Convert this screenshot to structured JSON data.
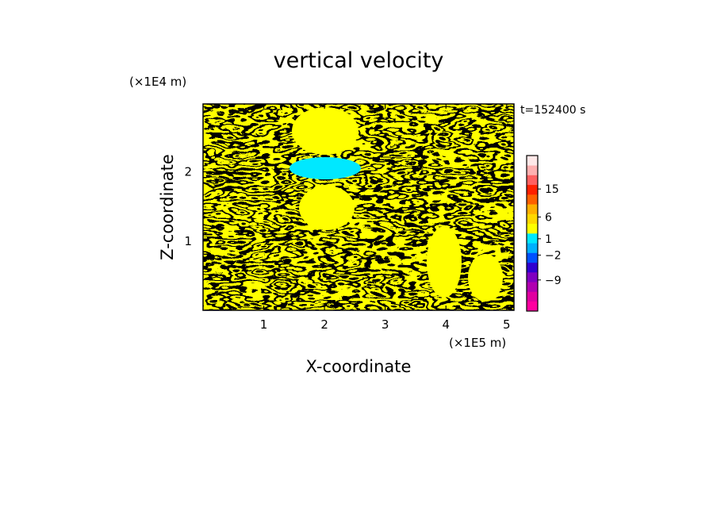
{
  "chart_data": {
    "type": "heatmap",
    "title": "vertical velocity",
    "xlabel": "X-coordinate",
    "ylabel": "Z-coordinate",
    "x_unit": "(×1E5 m)",
    "y_unit": "(×1E4 m)",
    "time_label": "t=152400 s",
    "xlim": [
      0,
      5.12
    ],
    "ylim": [
      0,
      2.98
    ],
    "x_ticks": [
      {
        "value": 1,
        "label": "1"
      },
      {
        "value": 2,
        "label": "2"
      },
      {
        "value": 3,
        "label": "3"
      },
      {
        "value": 4,
        "label": "4"
      },
      {
        "value": 5,
        "label": "5"
      }
    ],
    "y_ticks": [
      {
        "value": 1,
        "label": "1"
      },
      {
        "value": 2,
        "label": "2"
      }
    ],
    "field_colors": {
      "positive": "#ffff00",
      "negative": "#00e8ff"
    },
    "colorbar": {
      "levels": [
        {
          "color": "#ff00a0"
        },
        {
          "color": "#e000a0"
        },
        {
          "color": "#b000b0"
        },
        {
          "color": "#8000c0"
        },
        {
          "color": "#3000d0"
        },
        {
          "color": "#0050ff"
        },
        {
          "color": "#00b0ff"
        },
        {
          "color": "#00e8ff"
        },
        {
          "color": "#ffff00"
        },
        {
          "color": "#ffd800"
        },
        {
          "color": "#ffb000"
        },
        {
          "color": "#ff6000"
        },
        {
          "color": "#ff2000"
        },
        {
          "color": "#ff6060"
        },
        {
          "color": "#ffb0b0"
        },
        {
          "color": "#ffe8e8"
        }
      ],
      "labels": [
        {
          "text": "15",
          "position": 0.785
        },
        {
          "text": "6",
          "position": 0.605
        },
        {
          "text": "1",
          "position": 0.465
        },
        {
          "text": "−2",
          "position": 0.36
        },
        {
          "text": "−9",
          "position": 0.2
        }
      ]
    }
  }
}
